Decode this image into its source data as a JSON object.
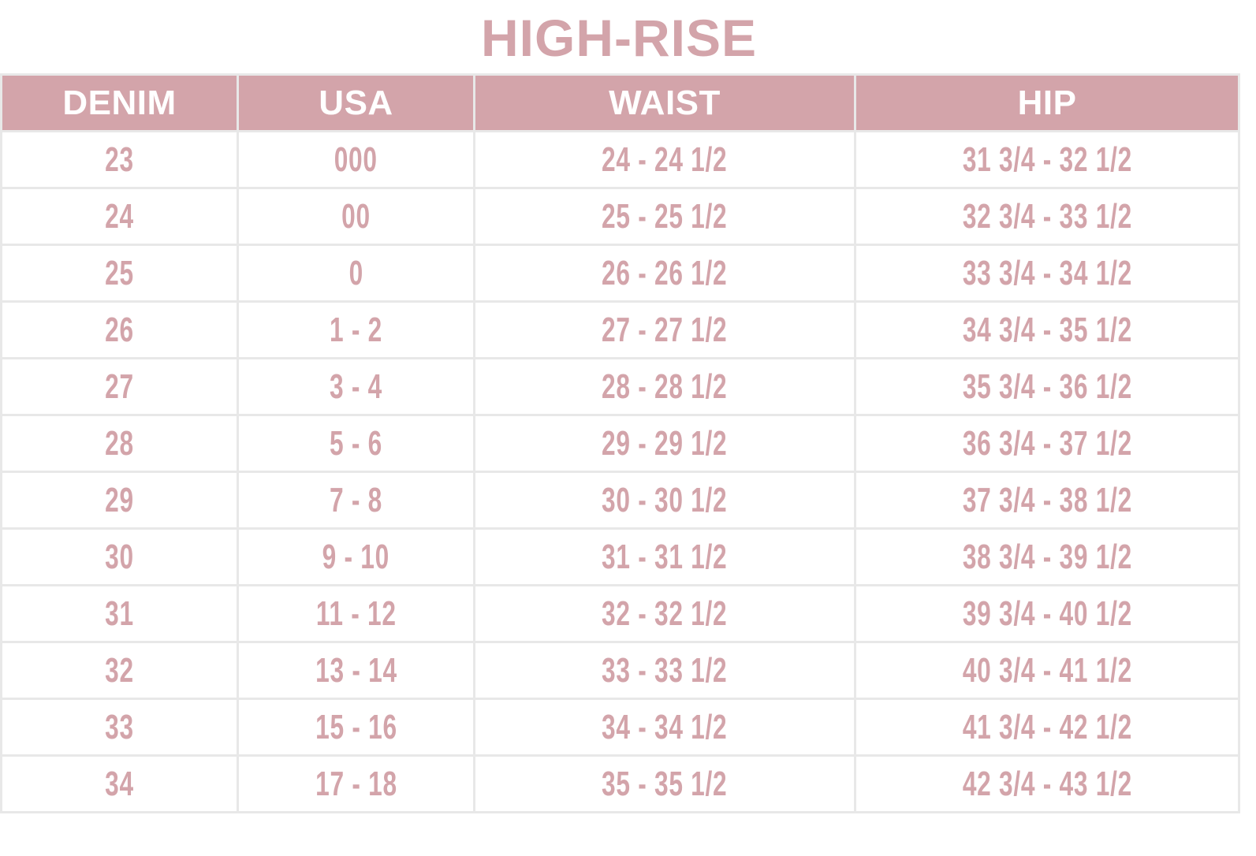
{
  "title": "HIGH-RISE",
  "colors": {
    "accent": "#d3a4aa",
    "header_text": "#ffffff",
    "grid": "#e8e8e8",
    "background": "#ffffff"
  },
  "table": {
    "headers": [
      "DENIM",
      "USA",
      "WAIST",
      "HIP"
    ],
    "rows": [
      [
        "23",
        "000",
        "24 - 24 1/2",
        "31 3/4 - 32 1/2"
      ],
      [
        "24",
        "00",
        "25 - 25 1/2",
        "32 3/4 - 33 1/2"
      ],
      [
        "25",
        "0",
        "26 - 26 1/2",
        "33 3/4 - 34 1/2"
      ],
      [
        "26",
        "1 - 2",
        "27 - 27 1/2",
        "34 3/4 - 35 1/2"
      ],
      [
        "27",
        "3 - 4",
        "28 - 28 1/2",
        "35 3/4 - 36 1/2"
      ],
      [
        "28",
        "5 - 6",
        "29 - 29 1/2",
        "36 3/4 - 37 1/2"
      ],
      [
        "29",
        "7 - 8",
        "30 - 30 1/2",
        "37 3/4 - 38 1/2"
      ],
      [
        "30",
        "9 - 10",
        "31 - 31 1/2",
        "38 3/4 - 39 1/2"
      ],
      [
        "31",
        "11 - 12",
        "32 - 32 1/2",
        "39 3/4 - 40 1/2"
      ],
      [
        "32",
        "13 - 14",
        "33 - 33 1/2",
        "40 3/4 - 41 1/2"
      ],
      [
        "33",
        "15 - 16",
        "34 - 34 1/2",
        "41 3/4 - 42 1/2"
      ],
      [
        "34",
        "17 - 18",
        "35 - 35 1/2",
        "42 3/4 - 43 1/2"
      ]
    ]
  }
}
